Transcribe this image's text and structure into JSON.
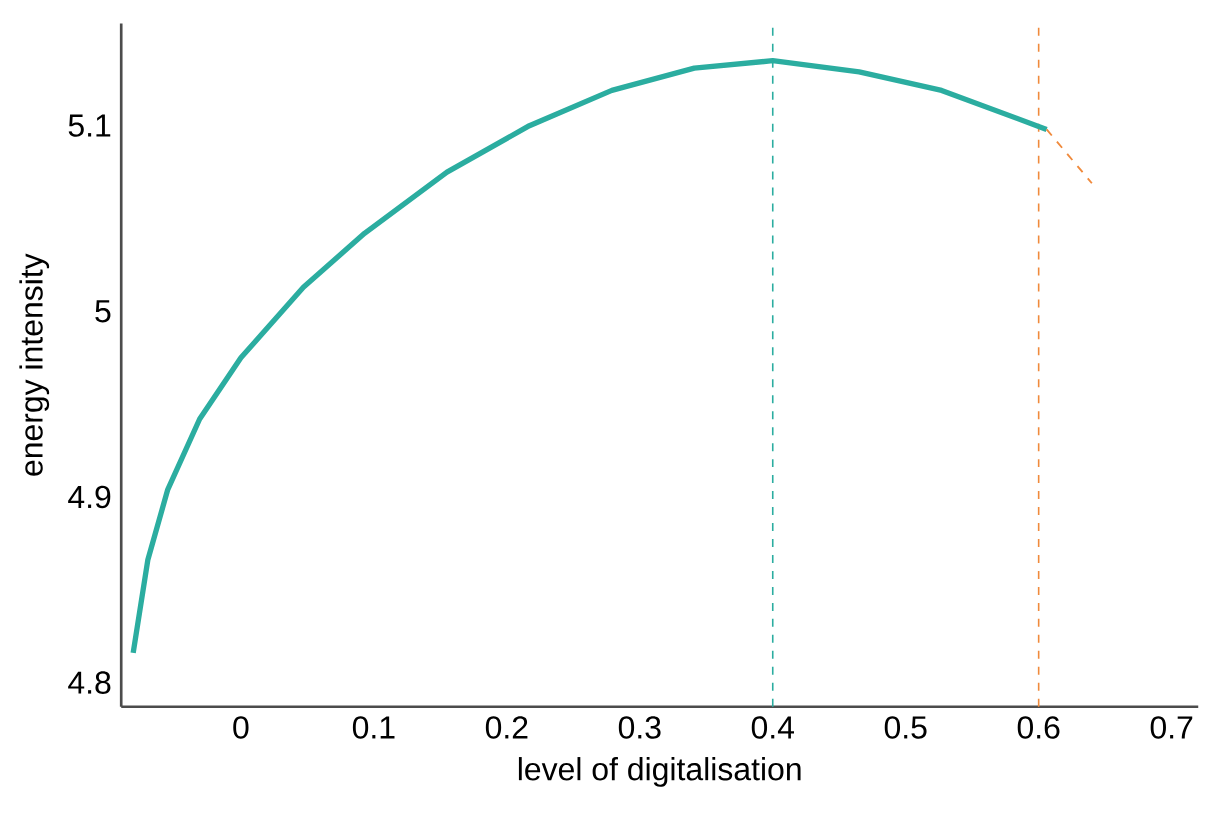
{
  "chart_data": {
    "type": "line",
    "xlabel": "level of digitalisation",
    "ylabel": "energy intensity",
    "xlim": [
      -0.09,
      0.72
    ],
    "ylim": [
      4.787,
      5.155
    ],
    "xticks": [
      0,
      0.1,
      0.2,
      0.3,
      0.4,
      0.5,
      0.6,
      0.7
    ],
    "yticks": [
      4.8,
      4.9,
      5,
      5.1
    ],
    "grid": false,
    "marker": "none",
    "series": [
      {
        "color": "#2bada0",
        "line_style": "solid",
        "x": [
          -0.081,
          -0.07,
          -0.055,
          -0.031,
          0,
          0.047,
          0.093,
          0.155,
          0.217,
          0.279,
          0.341,
          0.4,
          0.465,
          0.527,
          0.606
        ],
        "values": [
          4.816,
          4.866,
          4.904,
          4.942,
          4.975,
          5.013,
          5.042,
          5.075,
          5.1,
          5.119,
          5.131,
          5.135,
          5.129,
          5.119,
          5.098
        ]
      },
      {
        "color": "#f08a3c",
        "line_style": "dashed",
        "x": [
          0.606,
          0.64
        ],
        "values": [
          5.098,
          5.069
        ]
      }
    ],
    "ref_lines": [
      {
        "axis": "x",
        "value": 0.4,
        "color": "#2bada0",
        "line_style": "dashed"
      },
      {
        "axis": "x",
        "value": 0.6,
        "color": "#f08a3c",
        "line_style": "dashed"
      }
    ]
  }
}
